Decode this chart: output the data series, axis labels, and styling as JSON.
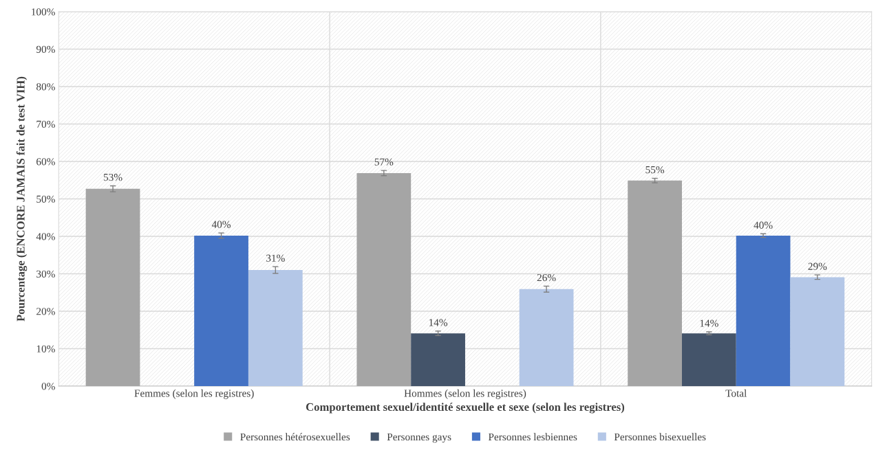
{
  "chart_data": {
    "type": "bar",
    "xlabel": "Comportement sexuel/identité sexuelle et sexe (selon les registres)",
    "ylabel": "Pourcentage (ENCORE JAMAIS fait de test VIH)",
    "categories": [
      "Femmes (selon les registres)",
      "Hommes (selon les registres)",
      "Total"
    ],
    "series": [
      {
        "name": "Personnes hétérosexuelles",
        "color": "#a5a5a5",
        "values": [
          52.7,
          56.9,
          54.9
        ],
        "errors": [
          0.8,
          0.7,
          0.6
        ],
        "value_labels": [
          "53%",
          "57%",
          "55%"
        ]
      },
      {
        "name": "Personnes gays",
        "color": "#44546a",
        "values": [
          null,
          14.1,
          14.1
        ],
        "errors": [
          null,
          0.6,
          0.4
        ],
        "value_labels": [
          null,
          "14%",
          "14%"
        ]
      },
      {
        "name": "Personnes lesbiennes",
        "color": "#4472c4",
        "values": [
          40.2,
          null,
          40.2
        ],
        "errors": [
          0.7,
          null,
          0.5
        ],
        "value_labels": [
          "40%",
          null,
          "40%"
        ]
      },
      {
        "name": "Personnes bisexuelles",
        "color": "#b4c7e7",
        "values": [
          31.0,
          25.9,
          29.1
        ],
        "errors": [
          0.9,
          0.8,
          0.6
        ],
        "value_labels": [
          "31%",
          "26%",
          "29%"
        ]
      }
    ],
    "ylim": [
      0,
      100
    ],
    "yticks": [
      {
        "value": 0,
        "label": "0%"
      },
      {
        "value": 10,
        "label": "10%"
      },
      {
        "value": 20,
        "label": "20%"
      },
      {
        "value": 30,
        "label": "30%"
      },
      {
        "value": 40,
        "label": "40%"
      },
      {
        "value": 50,
        "label": "50%"
      },
      {
        "value": 60,
        "label": "60%"
      },
      {
        "value": 70,
        "label": "70%"
      },
      {
        "value": 80,
        "label": "80%"
      },
      {
        "value": 90,
        "label": "90%"
      },
      {
        "value": 100,
        "label": "100%"
      }
    ],
    "grid": true,
    "legend": "bottom"
  }
}
